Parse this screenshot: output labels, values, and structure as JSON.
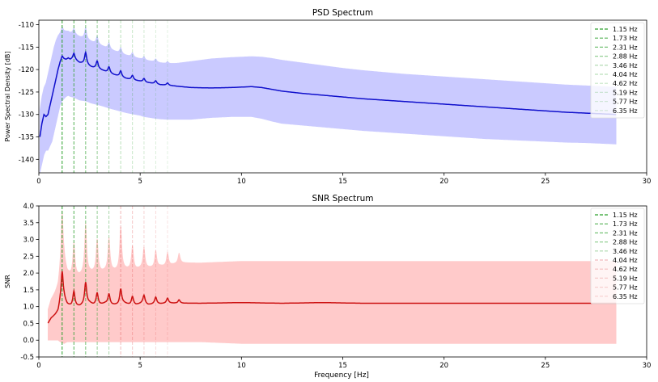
{
  "figure": {
    "xlabel": "Frequency [Hz]"
  },
  "chart_data": [
    {
      "type": "line",
      "title": "PSD Spectrum",
      "xlabel": "",
      "ylabel": "Power Spectral Density [dB]",
      "xlim": [
        0,
        30
      ],
      "ylim": [
        -143,
        -109
      ],
      "xticks": [
        0,
        5,
        10,
        15,
        20,
        25,
        30
      ],
      "yticks": [
        -140,
        -135,
        -130,
        -125,
        -120,
        -115,
        -110
      ],
      "grid": false,
      "legend_placement": "top-right",
      "line_color": "#1010cc",
      "band_color": "#c8c8ff",
      "series": [
        {
          "x": [
            0.05,
            0.15,
            0.25,
            0.35,
            0.45,
            0.55,
            0.65,
            0.75,
            0.85,
            0.95,
            1.05,
            1.15,
            1.25,
            1.35,
            1.45,
            1.55,
            1.73,
            2.0,
            2.31,
            2.6,
            2.88,
            3.2,
            3.46,
            3.8,
            4.04,
            4.3,
            4.62,
            5.0,
            5.19,
            5.5,
            5.77,
            6.0,
            6.35,
            6.8,
            7.5,
            8.5,
            9.5,
            10.5,
            11.0,
            11.5,
            12,
            13,
            14,
            15,
            16,
            17,
            18,
            19,
            20,
            21,
            22,
            23,
            24,
            25,
            26,
            27,
            28.5
          ],
          "values": [
            -135,
            -132,
            -130,
            -130.5,
            -130,
            -128,
            -126,
            -124,
            -122,
            -120,
            -118.5,
            -118,
            -117.8,
            -117.8,
            -117.5,
            -117.8,
            -117.6,
            -118.5,
            -118.8,
            -119.5,
            -119.8,
            -120.3,
            -120.8,
            -121.3,
            -121.6,
            -122,
            -122.3,
            -122.6,
            -122.8,
            -123,
            -123.2,
            -123.4,
            -123.5,
            -123.7,
            -124,
            -124.1,
            -124,
            -123.8,
            -124,
            -124.4,
            -124.8,
            -125.3,
            -125.7,
            -126.1,
            -126.5,
            -126.8,
            -127.1,
            -127.4,
            -127.7,
            -128,
            -128.3,
            -128.6,
            -128.9,
            -129.2,
            -129.5,
            -129.7,
            -130
          ]
        }
      ],
      "band": {
        "upper": [
          -129,
          -126,
          -124,
          -123,
          -121,
          -119,
          -117,
          -115,
          -113.5,
          -112.5,
          -112,
          -111.5,
          -111.5,
          -111.5,
          -111.5,
          -111.8,
          -112,
          -112.7,
          -113.2,
          -113.8,
          -114.3,
          -114.9,
          -115.4,
          -116,
          -116.4,
          -116.8,
          -117.2,
          -117.6,
          -117.9,
          -118.1,
          -118.3,
          -118.5,
          -118.7,
          -118.6,
          -118.2,
          -117.6,
          -117.3,
          -117.1,
          -117.2,
          -117.5,
          -117.9,
          -118.5,
          -119.1,
          -119.7,
          -120.2,
          -120.6,
          -121,
          -121.3,
          -121.6,
          -121.9,
          -122.2,
          -122.5,
          -122.8,
          -123.1,
          -123.4,
          -123.6,
          -123.9
        ],
        "lower": [
          -143,
          -141,
          -139,
          -138,
          -138,
          -137,
          -136,
          -134,
          -132,
          -130,
          -128,
          -127,
          -126.5,
          -126,
          -125.8,
          -126,
          -126.2,
          -126.8,
          -127,
          -127.5,
          -127.8,
          -128.2,
          -128.6,
          -129,
          -129.3,
          -129.6,
          -129.9,
          -130.2,
          -130.5,
          -130.7,
          -130.9,
          -131,
          -131.1,
          -131.1,
          -131.1,
          -130.7,
          -130.5,
          -130.5,
          -130.9,
          -131.5,
          -132,
          -132.4,
          -132.8,
          -133.2,
          -133.6,
          -133.9,
          -134.2,
          -134.5,
          -134.8,
          -135.1,
          -135.4,
          -135.6,
          -135.8,
          -136,
          -136.2,
          -136.3,
          -136.6
        ]
      },
      "peaks": [
        {
          "x": 1.15,
          "height": 1.0
        },
        {
          "x": 1.73,
          "height": 1.2
        },
        {
          "x": 2.31,
          "height": 2.6
        },
        {
          "x": 2.88,
          "height": 1.7
        },
        {
          "x": 3.46,
          "height": 1.4
        },
        {
          "x": 4.04,
          "height": 1.3
        },
        {
          "x": 4.62,
          "height": 1.0
        },
        {
          "x": 5.19,
          "height": 0.8
        },
        {
          "x": 5.77,
          "height": 0.7
        },
        {
          "x": 6.35,
          "height": 0.5
        }
      ],
      "markers": [
        {
          "x": 1.15,
          "label": "1.15 Hz",
          "color": "#2ca02c",
          "alpha": 1.0
        },
        {
          "x": 1.73,
          "label": "1.73 Hz",
          "color": "#2ca02c",
          "alpha": 0.8
        },
        {
          "x": 2.31,
          "label": "2.31 Hz",
          "color": "#2ca02c",
          "alpha": 0.65
        },
        {
          "x": 2.88,
          "label": "2.88 Hz",
          "color": "#2ca02c",
          "alpha": 0.5
        },
        {
          "x": 3.46,
          "label": "3.46 Hz",
          "color": "#2ca02c",
          "alpha": 0.4
        },
        {
          "x": 4.04,
          "label": "4.04 Hz",
          "color": "#2ca02c",
          "alpha": 0.32
        },
        {
          "x": 4.62,
          "label": "4.62 Hz",
          "color": "#2ca02c",
          "alpha": 0.26
        },
        {
          "x": 5.19,
          "label": "5.19 Hz",
          "color": "#2ca02c",
          "alpha": 0.2
        },
        {
          "x": 5.77,
          "label": "5.77 Hz",
          "color": "#2ca02c",
          "alpha": 0.16
        },
        {
          "x": 6.35,
          "label": "6.35 Hz",
          "color": "#2ca02c",
          "alpha": 0.12
        }
      ]
    },
    {
      "type": "line",
      "title": "SNR Spectrum",
      "xlabel": "Frequency [Hz]",
      "ylabel": "SNR",
      "xlim": [
        0,
        30
      ],
      "ylim": [
        -0.5,
        4.0
      ],
      "xticks": [
        0,
        5,
        10,
        15,
        20,
        25,
        30
      ],
      "yticks": [
        -0.5,
        0.0,
        0.5,
        1.0,
        1.5,
        2.0,
        2.5,
        3.0,
        3.5,
        4.0
      ],
      "grid": false,
      "legend_placement": "top-right",
      "line_color": "#cc1111",
      "band_color": "#ffc8c8",
      "series": [
        {
          "x": [
            0.45,
            0.6,
            0.8,
            0.95,
            1.05,
            1.25,
            1.4,
            1.6,
            1.8,
            2.0,
            2.2,
            2.5,
            2.7,
            3.0,
            3.3,
            3.6,
            3.9,
            4.2,
            4.5,
            4.8,
            5.1,
            5.4,
            5.7,
            6.0,
            6.3,
            6.6,
            7.0,
            8,
            10,
            12,
            14,
            16,
            18,
            20,
            22,
            24,
            26,
            28.5
          ],
          "values": [
            0.5,
            0.65,
            0.75,
            0.85,
            1.1,
            1.2,
            1.05,
            1.0,
            1.0,
            1.0,
            1.05,
            1.1,
            1.05,
            1.05,
            1.1,
            1.05,
            1.05,
            1.1,
            1.05,
            1.05,
            1.1,
            1.05,
            1.08,
            1.08,
            1.1,
            1.1,
            1.1,
            1.1,
            1.12,
            1.1,
            1.12,
            1.1,
            1.1,
            1.1,
            1.1,
            1.1,
            1.1,
            1.1
          ]
        }
      ],
      "band": {
        "upper": [
          0.9,
          1.2,
          1.4,
          1.6,
          2.0,
          2.3,
          2.0,
          1.9,
          1.9,
          1.9,
          1.95,
          2.0,
          2.0,
          2.0,
          2.05,
          2.05,
          2.05,
          2.1,
          2.1,
          2.1,
          2.15,
          2.15,
          2.15,
          2.2,
          2.2,
          2.25,
          2.3,
          2.3,
          2.35,
          2.35,
          2.35,
          2.35,
          2.35,
          2.35,
          2.35,
          2.35,
          2.35,
          2.35
        ],
        "lower": [
          0.0,
          0.0,
          0.0,
          0.0,
          -0.05,
          -0.1,
          -0.05,
          -0.05,
          -0.05,
          -0.05,
          -0.05,
          -0.05,
          -0.05,
          -0.05,
          -0.05,
          -0.05,
          -0.05,
          -0.05,
          -0.05,
          -0.05,
          -0.05,
          -0.05,
          -0.05,
          -0.05,
          -0.05,
          -0.05,
          -0.05,
          -0.05,
          -0.1,
          -0.1,
          -0.1,
          -0.1,
          -0.1,
          -0.1,
          -0.1,
          -0.1,
          -0.1,
          -0.1
        ]
      },
      "peaks": [
        {
          "x": 1.15,
          "height": 0.9
        },
        {
          "x": 1.73,
          "height": 0.45
        },
        {
          "x": 2.31,
          "height": 0.65
        },
        {
          "x": 2.88,
          "height": 0.35
        },
        {
          "x": 3.46,
          "height": 0.3
        },
        {
          "x": 4.04,
          "height": 0.45
        },
        {
          "x": 4.62,
          "height": 0.25
        },
        {
          "x": 5.19,
          "height": 0.25
        },
        {
          "x": 5.77,
          "height": 0.2
        },
        {
          "x": 6.35,
          "height": 0.15
        },
        {
          "x": 6.92,
          "height": 0.1
        }
      ],
      "band_peaks": [
        {
          "x": 1.15,
          "height": 1.7
        },
        {
          "x": 1.73,
          "height": 1.0
        },
        {
          "x": 2.31,
          "height": 1.5
        },
        {
          "x": 2.88,
          "height": 1.0
        },
        {
          "x": 3.46,
          "height": 1.0
        },
        {
          "x": 4.04,
          "height": 1.3
        },
        {
          "x": 4.62,
          "height": 0.7
        },
        {
          "x": 5.19,
          "height": 0.6
        },
        {
          "x": 5.77,
          "height": 0.5
        },
        {
          "x": 6.35,
          "height": 0.4
        },
        {
          "x": 6.92,
          "height": 0.3
        }
      ],
      "markers": [
        {
          "x": 1.15,
          "label": "1.15 Hz",
          "color": "#2ca02c",
          "alpha": 1.0
        },
        {
          "x": 1.73,
          "label": "1.73 Hz",
          "color": "#2ca02c",
          "alpha": 0.8
        },
        {
          "x": 2.31,
          "label": "2.31 Hz",
          "color": "#2ca02c",
          "alpha": 0.65
        },
        {
          "x": 2.88,
          "label": "2.88 Hz",
          "color": "#2ca02c",
          "alpha": 0.5
        },
        {
          "x": 3.46,
          "label": "3.46 Hz",
          "color": "#2ca02c",
          "alpha": 0.4
        },
        {
          "x": 4.04,
          "label": "4.04 Hz",
          "color": "#d62728",
          "alpha": 0.32
        },
        {
          "x": 4.62,
          "label": "4.62 Hz",
          "color": "#d62728",
          "alpha": 0.26
        },
        {
          "x": 5.19,
          "label": "5.19 Hz",
          "color": "#d62728",
          "alpha": 0.2
        },
        {
          "x": 5.77,
          "label": "5.77 Hz",
          "color": "#d62728",
          "alpha": 0.16
        },
        {
          "x": 6.35,
          "label": "6.35 Hz",
          "color": "#d62728",
          "alpha": 0.12
        }
      ]
    }
  ]
}
